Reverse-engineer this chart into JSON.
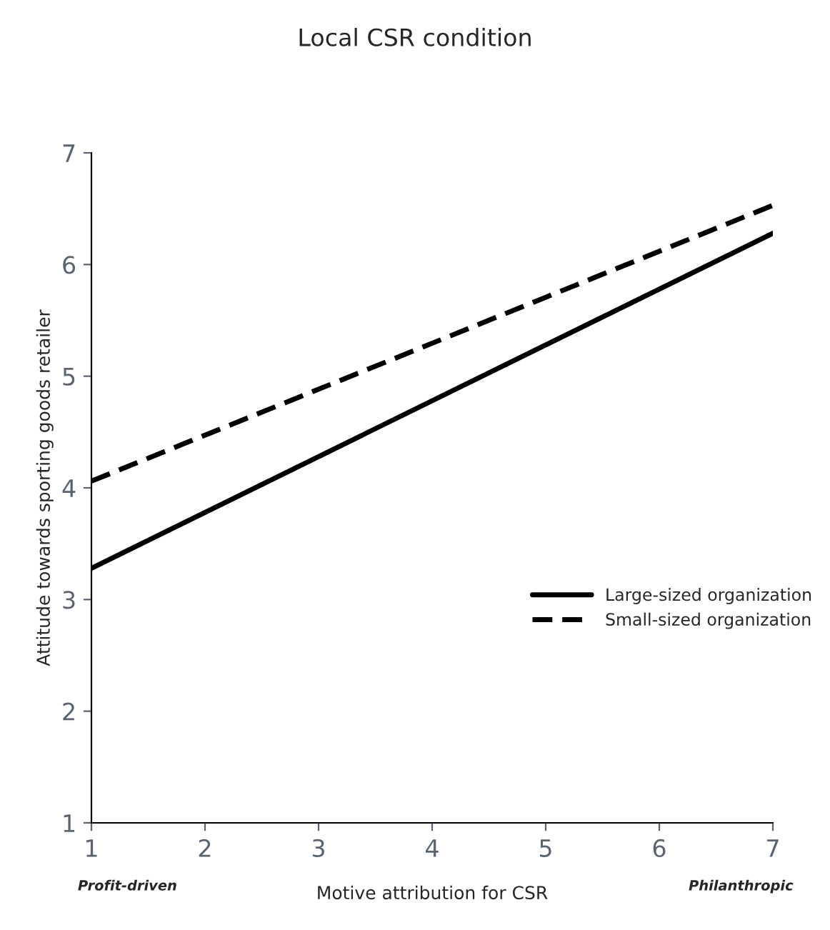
{
  "chart_data": {
    "type": "line",
    "title": "Local CSR condition",
    "xlabel": "Motive attribution for CSR",
    "ylabel": "Attitude towards sporting goods retailer",
    "x": [
      1,
      7
    ],
    "series": [
      {
        "name": "Large-sized organization",
        "color": "#000000",
        "values": [
          3.28,
          6.28
        ],
        "line_style": "solid"
      },
      {
        "name": "Small-sized organization",
        "color": "#000000",
        "values": [
          4.06,
          6.53
        ],
        "line_style": "dashed"
      }
    ],
    "xlim": [
      1,
      7
    ],
    "ylim": [
      1,
      7
    ],
    "xticks": [
      1,
      2,
      3,
      4,
      5,
      6,
      7
    ],
    "yticks": [
      1,
      2,
      3,
      4,
      5,
      6,
      7
    ],
    "annotations": [
      "Profit-driven",
      "Philanthropic"
    ],
    "grid": false,
    "legend": "right",
    "marker": "none"
  }
}
